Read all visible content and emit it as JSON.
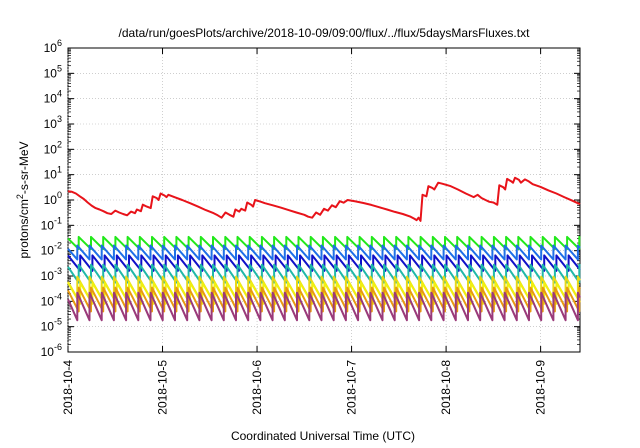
{
  "chart_data": {
    "type": "line",
    "title": "/data/run/goesPlots/archive/2018-10-09/09:00/flux/../flux/5daysMarsFluxes.txt",
    "xlabel": "Coordinated Universal Time (UTC)",
    "ylabel_parts": {
      "base": "protons/cm",
      "sup": "2",
      "rest": "-s-sr-MeV"
    },
    "y_scale": "log",
    "ylim": [
      1e-06,
      1000000.0
    ],
    "y_ticks": [
      {
        "base": "10",
        "exp": "-6"
      },
      {
        "base": "10",
        "exp": "-5"
      },
      {
        "base": "10",
        "exp": "-4"
      },
      {
        "base": "10",
        "exp": "-3"
      },
      {
        "base": "10",
        "exp": "-2"
      },
      {
        "base": "10",
        "exp": "-1"
      },
      {
        "base": "10",
        "exp": "0"
      },
      {
        "base": "10",
        "exp": "1"
      },
      {
        "base": "10",
        "exp": "2"
      },
      {
        "base": "10",
        "exp": "3"
      },
      {
        "base": "10",
        "exp": "4"
      },
      {
        "base": "10",
        "exp": "5"
      },
      {
        "base": "10",
        "exp": "6"
      }
    ],
    "x_ticks": [
      "2018-10-4",
      "2018-10-5",
      "2018-10-6",
      "2018-10-7",
      "2018-10-8",
      "2018-10-9"
    ],
    "xlim": [
      "2018-10-04 00:00",
      "2018-10-09 10:00"
    ],
    "grid": true,
    "series": [
      {
        "color": "#e8131a",
        "width": 2.0,
        "points": [
          [
            "2018-10-04 00:00",
            2.2
          ],
          [
            "2018-10-04 01:00",
            2.1
          ],
          [
            "2018-10-04 02:00",
            1.8
          ],
          [
            "2018-10-04 03:00",
            1.4
          ],
          [
            "2018-10-04 04:00",
            1.1
          ],
          [
            "2018-10-04 05:00",
            0.8
          ],
          [
            "2018-10-04 06:00",
            0.6
          ],
          [
            "2018-10-04 07:00",
            0.48
          ],
          [
            "2018-10-04 08:00",
            0.42
          ],
          [
            "2018-10-04 09:00",
            0.36
          ],
          [
            "2018-10-04 10:00",
            0.3
          ],
          [
            "2018-10-04 11:00",
            0.28
          ],
          [
            "2018-10-04 12:00",
            0.38
          ],
          [
            "2018-10-04 13:00",
            0.32
          ],
          [
            "2018-10-04 14:00",
            0.28
          ],
          [
            "2018-10-04 15:00",
            0.25
          ],
          [
            "2018-10-04 16:00",
            0.35
          ],
          [
            "2018-10-04 17:00",
            0.3
          ],
          [
            "2018-10-04 17:30",
            0.42
          ],
          [
            "2018-10-04 18:30",
            0.36
          ],
          [
            "2018-10-04 19:00",
            0.65
          ],
          [
            "2018-10-04 20:00",
            0.55
          ],
          [
            "2018-10-04 21:00",
            0.48
          ],
          [
            "2018-10-04 21:30",
            1.4
          ],
          [
            "2018-10-04 22:30",
            1.2
          ],
          [
            "2018-10-04 23:00",
            1.0
          ],
          [
            "2018-10-04 23:30",
            1.8
          ],
          [
            "2018-10-05 00:30",
            1.5
          ],
          [
            "2018-10-05 01:00",
            1.3
          ],
          [
            "2018-10-05 01:30",
            1.6
          ],
          [
            "2018-10-05 03:00",
            1.3
          ],
          [
            "2018-10-05 05:00",
            1.0
          ],
          [
            "2018-10-05 07:00",
            0.75
          ],
          [
            "2018-10-05 09:00",
            0.55
          ],
          [
            "2018-10-05 11:00",
            0.4
          ],
          [
            "2018-10-05 13:00",
            0.3
          ],
          [
            "2018-10-05 14:00",
            0.25
          ],
          [
            "2018-10-05 15:00",
            0.2
          ],
          [
            "2018-10-05 16:00",
            0.32
          ],
          [
            "2018-10-05 17:00",
            0.26
          ],
          [
            "2018-10-05 18:00",
            0.22
          ],
          [
            "2018-10-05 18:30",
            0.42
          ],
          [
            "2018-10-05 19:30",
            0.35
          ],
          [
            "2018-10-05 20:00",
            0.45
          ],
          [
            "2018-10-05 21:00",
            0.38
          ],
          [
            "2018-10-05 21:30",
            0.8
          ],
          [
            "2018-10-05 22:30",
            0.65
          ],
          [
            "2018-10-05 23:00",
            0.55
          ],
          [
            "2018-10-05 23:30",
            1.0
          ],
          [
            "2018-10-06 01:00",
            0.85
          ],
          [
            "2018-10-06 02:00",
            0.75
          ],
          [
            "2018-10-06 04:00",
            0.62
          ],
          [
            "2018-10-06 06:00",
            0.5
          ],
          [
            "2018-10-06 08:00",
            0.4
          ],
          [
            "2018-10-06 10:00",
            0.32
          ],
          [
            "2018-10-06 12:00",
            0.26
          ],
          [
            "2018-10-06 13:00",
            0.22
          ],
          [
            "2018-10-06 14:00",
            0.2
          ],
          [
            "2018-10-06 15:00",
            0.32
          ],
          [
            "2018-10-06 16:00",
            0.26
          ],
          [
            "2018-10-06 17:00",
            0.45
          ],
          [
            "2018-10-06 18:00",
            0.38
          ],
          [
            "2018-10-06 19:00",
            0.62
          ],
          [
            "2018-10-06 20:00",
            0.52
          ],
          [
            "2018-10-06 21:00",
            0.9
          ],
          [
            "2018-10-06 22:00",
            0.78
          ],
          [
            "2018-10-06 23:00",
            1.0
          ],
          [
            "2018-10-07 01:00",
            0.88
          ],
          [
            "2018-10-07 03:00",
            0.76
          ],
          [
            "2018-10-07 05:00",
            0.64
          ],
          [
            "2018-10-07 07:00",
            0.52
          ],
          [
            "2018-10-07 09:00",
            0.42
          ],
          [
            "2018-10-07 11:00",
            0.34
          ],
          [
            "2018-10-07 13:00",
            0.28
          ],
          [
            "2018-10-07 15:00",
            0.22
          ],
          [
            "2018-10-07 16:00",
            0.18
          ],
          [
            "2018-10-07 16:30",
            0.16
          ],
          [
            "2018-10-07 17:00",
            0.2
          ],
          [
            "2018-10-07 17:30",
            0.15
          ],
          [
            "2018-10-07 18:00",
            1.6
          ],
          [
            "2018-10-07 19:00",
            1.4
          ],
          [
            "2018-10-07 19:30",
            3.5
          ],
          [
            "2018-10-07 20:30",
            3.0
          ],
          [
            "2018-10-07 21:00",
            2.6
          ],
          [
            "2018-10-07 22:00",
            4.8
          ],
          [
            "2018-10-07 23:00",
            4.4
          ],
          [
            "2018-10-08 01:00",
            3.6
          ],
          [
            "2018-10-08 03:00",
            2.6
          ],
          [
            "2018-10-08 05:00",
            1.8
          ],
          [
            "2018-10-08 07:00",
            1.3
          ],
          [
            "2018-10-08 08:00",
            1.6
          ],
          [
            "2018-10-08 09:00",
            1.2
          ],
          [
            "2018-10-08 10:00",
            1.0
          ],
          [
            "2018-10-08 11:00",
            0.85
          ],
          [
            "2018-10-08 12:00",
            0.8
          ],
          [
            "2018-10-08 13:00",
            0.65
          ],
          [
            "2018-10-08 13:30",
            3.8
          ],
          [
            "2018-10-08 14:30",
            3.2
          ],
          [
            "2018-10-08 15:00",
            2.6
          ],
          [
            "2018-10-08 15:30",
            6.8
          ],
          [
            "2018-10-08 16:30",
            5.5
          ],
          [
            "2018-10-08 17:00",
            4.8
          ],
          [
            "2018-10-08 17:30",
            7.5
          ],
          [
            "2018-10-08 18:30",
            6.2
          ],
          [
            "2018-10-08 19:00",
            4.8
          ],
          [
            "2018-10-08 20:00",
            6.5
          ],
          [
            "2018-10-08 21:00",
            5.4
          ],
          [
            "2018-10-08 22:00",
            4.2
          ],
          [
            "2018-10-09 00:00",
            3.3
          ],
          [
            "2018-10-09 02:00",
            2.4
          ],
          [
            "2018-10-09 04:00",
            1.8
          ],
          [
            "2018-10-09 06:00",
            1.3
          ],
          [
            "2018-10-09 08:00",
            0.95
          ],
          [
            "2018-10-09 10:00",
            0.68
          ]
        ]
      },
      {
        "color": "#22e81a",
        "width": 2.0,
        "sawtooth": {
          "high": 0.035,
          "low": 0.0115
        }
      },
      {
        "color": "#1e6fe8",
        "width": 2.0,
        "sawtooth": {
          "high": 0.016,
          "low": 0.0045
        }
      },
      {
        "color": "#1010c8",
        "width": 2.0,
        "sawtooth": {
          "high": 0.0065,
          "low": 0.0016
        }
      },
      {
        "color": "#20b8a8",
        "width": 2.0,
        "sawtooth": {
          "high": 0.0028,
          "low": 0.00055
        }
      },
      {
        "color": "#e8d818",
        "width": 2.0,
        "sawtooth": {
          "high": 0.00095,
          "low": 0.00013
        }
      },
      {
        "color": "#f0f010",
        "width": 2.0,
        "sawtooth": {
          "high": 0.00055,
          "low": 8e-05
        }
      },
      {
        "color": "#e89a10",
        "width": 2.0,
        "sawtooth": {
          "high": 0.00035,
          "low": 4e-05
        }
      },
      {
        "color": "#9a3a7a",
        "width": 2.0,
        "sawtooth": {
          "high": 0.00022,
          "low": 1.8e-05
        }
      }
    ],
    "sawtooth_period_hours": 3.1
  }
}
